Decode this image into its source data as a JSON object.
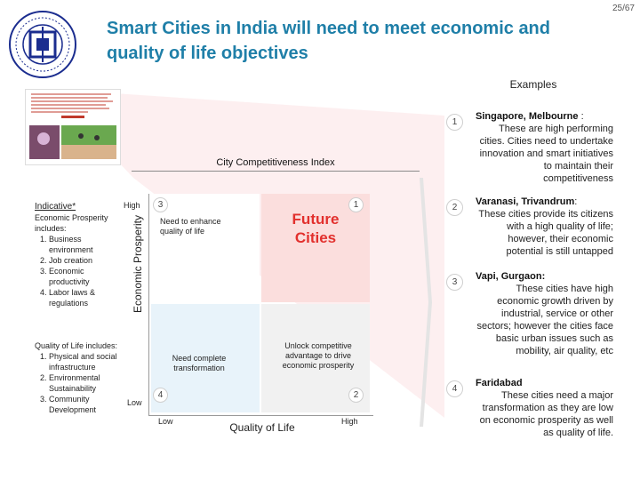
{
  "page_number": "25/67",
  "title": "Smart Cities in India will need to meet economic and quality of life objectives",
  "examples_label": "Examples",
  "logo": {
    "icon": "institute-seal-icon",
    "ring_color": "#1b2d8f"
  },
  "matrix": {
    "title": "City Competitiveness Index",
    "y_axis_label": "Economic Prosperity",
    "y_high": "High",
    "y_low": "Low",
    "x_axis_label": "Quality of Life",
    "x_low": "Low",
    "x_high": "High",
    "quadrants": {
      "top_left": {
        "number": "3",
        "text": "Need to enhance quality of life"
      },
      "top_right": {
        "number": "1",
        "text": "Future Cities"
      },
      "bottom_left": {
        "number": "4",
        "text": "Need complete transformation"
      },
      "bottom_right": {
        "number": "2",
        "text": "Unlock competitive advantage to drive economic prosperity"
      }
    },
    "colors": {
      "future_text": "#e2302d",
      "top_right_bg": "#fbdedd",
      "bottom_left_bg": "#e8f3fa"
    }
  },
  "indicative": {
    "heading": "Indicative*",
    "economic_intro": "Economic Prosperity includes:",
    "economic_items": [
      "Business environment",
      "Job creation",
      "Economic productivity",
      "Labor laws & regulations"
    ],
    "quality_intro": "Quality of Life includes:",
    "quality_items": [
      "Physical and social infrastructure",
      "Environmental Sustainability",
      "Community Development"
    ]
  },
  "examples": [
    {
      "number": "1",
      "title": "Singapore, Melbourne",
      "suffix": " :",
      "body": "These are high performing cities. Cities need to undertake innovation and smart initiatives to maintain their competitiveness"
    },
    {
      "number": "2",
      "title": "Varanasi, Trivandrum",
      "suffix": ":",
      "body": "These cities provide its citizens with a high quality of life; however, their economic potential is still untapped"
    },
    {
      "number": "3",
      "title": "Vapi, Gurgaon:",
      "suffix": "",
      "body": "These cities have high economic growth driven by industrial, service or other sectors; however the cities face basic urban issues such as mobility, air quality, etc"
    },
    {
      "number": "4",
      "title": "Faridabad",
      "suffix": "",
      "body": "These cities need a major transformation as they are low on economic prosperity as well as quality of life."
    }
  ]
}
